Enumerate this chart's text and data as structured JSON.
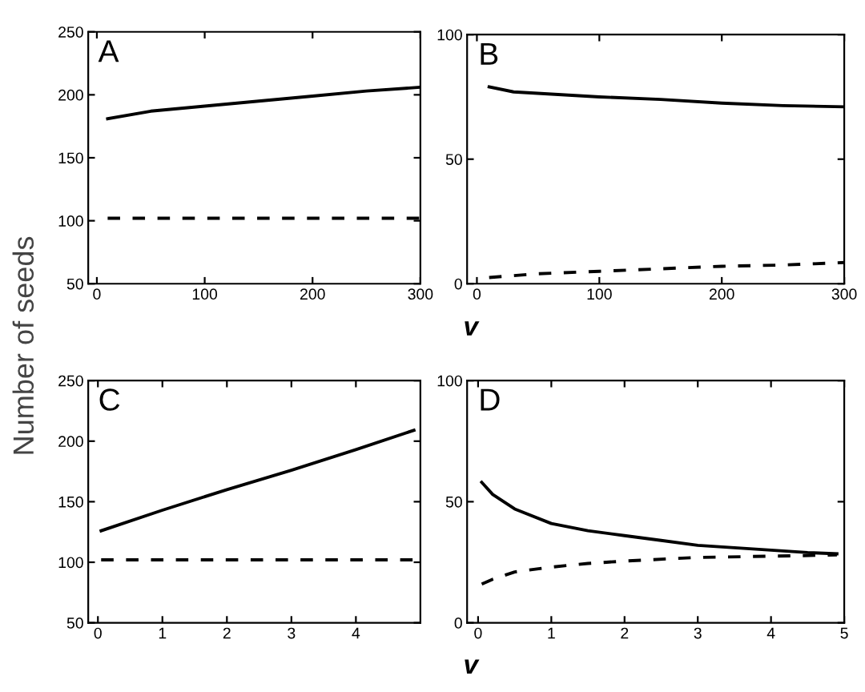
{
  "chart_data": [
    {
      "type": "line",
      "title": "A",
      "ylabel": "Number of seeds",
      "xlim": [
        -8,
        300
      ],
      "ylim": [
        50,
        250
      ],
      "xticks": [
        0,
        100,
        200,
        300
      ],
      "yticks": [
        50,
        100,
        150,
        200,
        250
      ],
      "series": [
        {
          "color": "#000000",
          "line_style": "solid",
          "x": [
            10,
            50,
            100,
            150,
            200,
            250,
            300
          ],
          "values": [
            181,
            187,
            191,
            195,
            199,
            203,
            206
          ]
        },
        {
          "color": "#000000",
          "line_style": "dashed",
          "x": [
            10,
            100,
            200,
            300
          ],
          "values": [
            102,
            102,
            102,
            102
          ]
        }
      ]
    },
    {
      "type": "line",
      "title": "B",
      "xlabel": "v",
      "xlim": [
        -8,
        300
      ],
      "ylim": [
        0,
        100
      ],
      "xticks": [
        0,
        100,
        200,
        300
      ],
      "yticks": [
        0,
        50,
        100
      ],
      "series": [
        {
          "color": "#000000",
          "line_style": "solid",
          "x": [
            10,
            30,
            100,
            150,
            200,
            250,
            300
          ],
          "values": [
            79,
            77,
            75,
            74,
            72.5,
            71.5,
            71
          ]
        },
        {
          "color": "#000000",
          "line_style": "dashed",
          "x": [
            10,
            50,
            100,
            150,
            200,
            250,
            300
          ],
          "values": [
            2.5,
            4,
            5,
            6,
            7,
            7.5,
            8.5
          ]
        }
      ]
    },
    {
      "type": "line",
      "title": "C",
      "xlim": [
        -0.15,
        5
      ],
      "ylim": [
        50,
        250
      ],
      "xticks": [
        0,
        1,
        2,
        3,
        4
      ],
      "yticks": [
        50,
        100,
        150,
        200,
        250
      ],
      "series": [
        {
          "color": "#000000",
          "line_style": "solid",
          "x": [
            0.05,
            1,
            2,
            3,
            4,
            4.9
          ],
          "values": [
            126,
            143,
            160,
            176,
            193,
            209
          ]
        },
        {
          "color": "#000000",
          "line_style": "dashed",
          "x": [
            0.05,
            1,
            2,
            3,
            4,
            4.9
          ],
          "values": [
            102,
            102,
            102,
            102,
            102,
            102
          ]
        }
      ]
    },
    {
      "type": "line",
      "title": "D",
      "xlabel": "v",
      "xlim": [
        -0.15,
        5
      ],
      "ylim": [
        0,
        100
      ],
      "xticks": [
        0,
        1,
        2,
        3,
        4,
        5
      ],
      "yticks": [
        0,
        50,
        100
      ],
      "series": [
        {
          "color": "#000000",
          "line_style": "solid",
          "x": [
            0.05,
            0.2,
            0.5,
            1,
            1.5,
            2,
            2.5,
            3,
            3.5,
            4,
            4.5,
            4.9
          ],
          "values": [
            58,
            53,
            47,
            41,
            38,
            36,
            34,
            32,
            31,
            30,
            29,
            28.5
          ]
        },
        {
          "color": "#000000",
          "line_style": "dashed",
          "x": [
            0.05,
            0.2,
            0.5,
            1,
            1.5,
            2,
            3,
            4,
            4.9
          ],
          "values": [
            16,
            18,
            21,
            23,
            24.5,
            25.5,
            27,
            27.5,
            28
          ]
        }
      ]
    }
  ]
}
